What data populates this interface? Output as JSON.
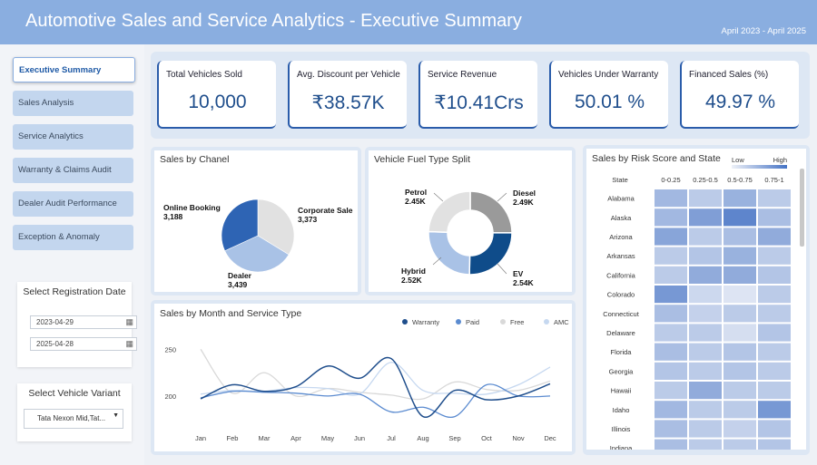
{
  "header": {
    "title": "Automotive Sales and Service Analytics  - Executive Summary",
    "date_range": "April 2023 - April 2025"
  },
  "sidebar": {
    "items": [
      {
        "label": "Executive Summary",
        "active": true
      },
      {
        "label": "Sales Analysis",
        "active": false
      },
      {
        "label": "Service Analytics",
        "active": false
      },
      {
        "label": "Warranty & Claims Audit",
        "active": false
      },
      {
        "label": "Dealer Audit Performance",
        "active": false
      },
      {
        "label": "Exception & Anomaly",
        "active": false
      }
    ],
    "registration_filter": {
      "title": "Select Registration Date",
      "start": "2023-04-29",
      "end": "2025-04-28"
    },
    "variant_filter": {
      "title": "Select Vehicle Variant",
      "value": "Tata Nexon Mid,Tat..."
    }
  },
  "kpis": [
    {
      "label": "Total Vehicles Sold",
      "value": "10,000"
    },
    {
      "label": "Avg. Discount per Vehicle",
      "value": "₹38.57K"
    },
    {
      "label": "Service Revenue",
      "value": "₹10.41Crs"
    },
    {
      "label": "Vehicles Under Warranty",
      "value": "50.01 %"
    },
    {
      "label": "Financed Sales (%)",
      "value": "49.97 %"
    }
  ],
  "colors": {
    "header": "#8aaee0",
    "accent": "#1f4e8c",
    "dark_blue": "#2a5caa",
    "mid_blue": "#a9c2e6",
    "light_gray": "#dcdcdc",
    "heat_low": "#eef1f8",
    "heat_high": "#4472c4"
  },
  "chart_data": [
    {
      "type": "pie",
      "title": "Sales by Chanel",
      "slices": [
        {
          "label": "Online Booking",
          "value": 3188,
          "display": "3,188",
          "color": "#2e64b4"
        },
        {
          "label": "Corporate Sale",
          "value": 3373,
          "display": "3,373",
          "color": "#e1e1e1"
        },
        {
          "label": "Dealer",
          "value": 3439,
          "display": "3,439",
          "color": "#a9c2e6"
        }
      ]
    },
    {
      "type": "pie",
      "title": "Vehicle Fuel Type Split",
      "donut": true,
      "slices": [
        {
          "label": "Diesel",
          "value": 2.49,
          "display": "2.49K",
          "color": "#9a9a9a"
        },
        {
          "label": "EV",
          "value": 2.54,
          "display": "2.54K",
          "color": "#0f4c8a"
        },
        {
          "label": "Hybrid",
          "value": 2.52,
          "display": "2.52K",
          "color": "#a9c2e6"
        },
        {
          "label": "Petrol",
          "value": 2.45,
          "display": "2.45K",
          "color": "#e1e1e1"
        }
      ]
    },
    {
      "type": "line",
      "title": "Sales by Month and Service Type",
      "categories": [
        "Jan",
        "Feb",
        "Mar",
        "Apr",
        "May",
        "Jun",
        "Jul",
        "Aug",
        "Sep",
        "Oct",
        "Nov",
        "Dec"
      ],
      "y_ticks": [
        200,
        250
      ],
      "ylim": [
        165,
        260
      ],
      "legend": "top-right",
      "series": [
        {
          "name": "Warranty",
          "color": "#1f4e8c",
          "values": [
            197,
            212,
            205,
            210,
            232,
            219,
            240,
            178,
            206,
            196,
            200,
            213
          ]
        },
        {
          "name": "Paid",
          "color": "#5b8bd0",
          "values": [
            198,
            205,
            204,
            203,
            200,
            202,
            183,
            188,
            178,
            212,
            200,
            200
          ]
        },
        {
          "name": "Free",
          "color": "#d9d9d9",
          "values": [
            250,
            203,
            225,
            200,
            208,
            204,
            201,
            197,
            215,
            207,
            206,
            216
          ]
        },
        {
          "name": "AMC",
          "color": "#c6d8f0",
          "values": [
            202,
            206,
            205,
            209,
            208,
            202,
            236,
            206,
            203,
            202,
            212,
            231
          ]
        }
      ]
    },
    {
      "type": "heatmap",
      "title": "Sales by Risk Score and State",
      "row_header": "State",
      "columns": [
        "0-0.25",
        "0.25-0.5",
        "0.5-0.75",
        "0.75-1"
      ],
      "legend_low": "Low",
      "legend_high": "High",
      "rows": [
        {
          "state": "Alabama",
          "values": [
            0.45,
            0.3,
            0.5,
            0.3
          ]
        },
        {
          "state": "Alaska",
          "values": [
            0.45,
            0.65,
            0.85,
            0.4
          ]
        },
        {
          "state": "Arizona",
          "values": [
            0.6,
            0.3,
            0.4,
            0.55
          ]
        },
        {
          "state": "Arkansas",
          "values": [
            0.3,
            0.35,
            0.5,
            0.3
          ]
        },
        {
          "state": "California",
          "values": [
            0.3,
            0.55,
            0.55,
            0.35
          ]
        },
        {
          "state": "Colorado",
          "values": [
            0.7,
            0.2,
            0.1,
            0.3
          ]
        },
        {
          "state": "Connecticut",
          "values": [
            0.4,
            0.25,
            0.3,
            0.3
          ]
        },
        {
          "state": "Delaware",
          "values": [
            0.3,
            0.3,
            0.15,
            0.35
          ]
        },
        {
          "state": "Florida",
          "values": [
            0.4,
            0.3,
            0.35,
            0.3
          ]
        },
        {
          "state": "Georgia",
          "values": [
            0.35,
            0.3,
            0.35,
            0.3
          ]
        },
        {
          "state": "Hawaii",
          "values": [
            0.3,
            0.55,
            0.3,
            0.3
          ]
        },
        {
          "state": "Idaho",
          "values": [
            0.45,
            0.3,
            0.3,
            0.7
          ]
        },
        {
          "state": "Illinois",
          "values": [
            0.4,
            0.3,
            0.25,
            0.35
          ]
        },
        {
          "state": "Indiana",
          "values": [
            0.4,
            0.3,
            0.3,
            0.35
          ]
        }
      ]
    }
  ]
}
